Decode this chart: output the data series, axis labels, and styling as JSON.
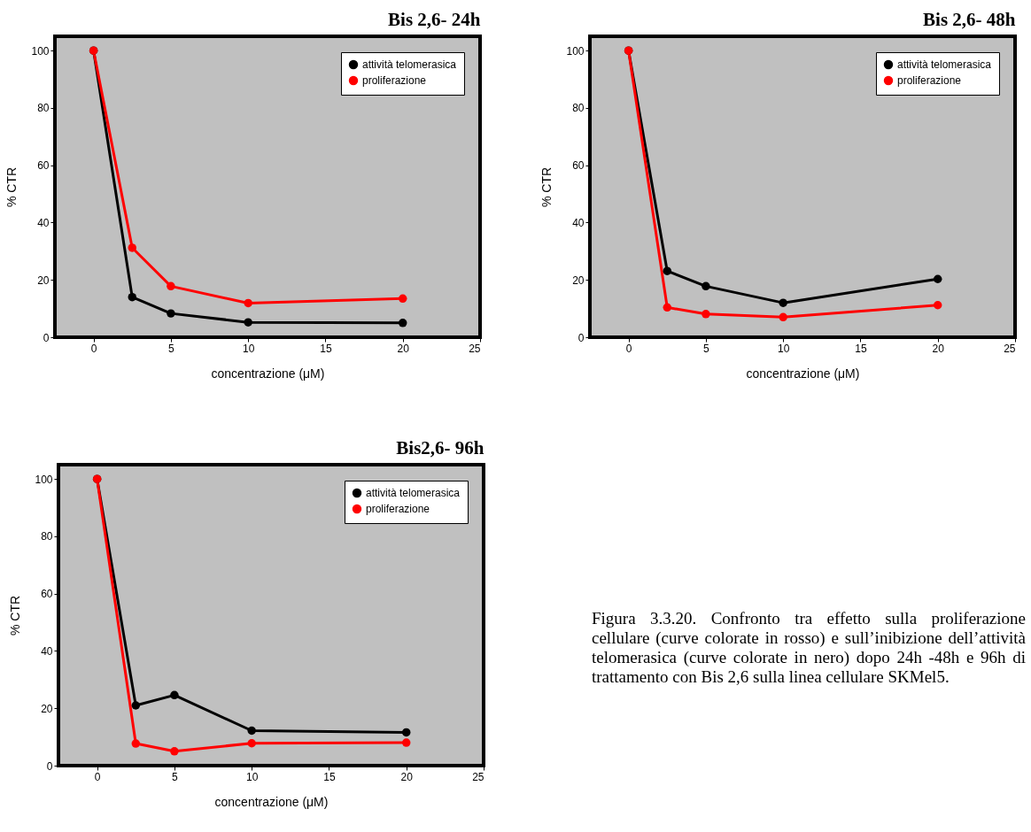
{
  "chart_data": [
    {
      "type": "line",
      "title": "Bis 2,6- 24h",
      "xlabel": "concentrazione (μM)",
      "ylabel": "% CTR",
      "x": [
        0,
        2.5,
        5,
        10,
        20
      ],
      "xlim": [
        -2.5,
        25
      ],
      "ylim": [
        0,
        105
      ],
      "xticks": [
        0,
        5,
        10,
        15,
        20,
        25
      ],
      "yticks": [
        0,
        20,
        40,
        60,
        80,
        100
      ],
      "grid": false,
      "legend": "top right",
      "marker": "circle",
      "line_style": "solid",
      "series": [
        {
          "name": "attività telomerasica",
          "color": "#000000",
          "values": [
            100,
            14,
            8.3,
            5.2,
            5.0
          ]
        },
        {
          "name": "proliferazione",
          "color": "#ff0000",
          "values": [
            100,
            31.2,
            17.8,
            11.9,
            13.5
          ]
        }
      ]
    },
    {
      "type": "line",
      "title": "Bis 2,6- 48h",
      "xlabel": "concentrazione (μM)",
      "ylabel": "% CTR",
      "x": [
        0,
        2.5,
        5,
        10,
        20
      ],
      "xlim": [
        -2.5,
        25
      ],
      "ylim": [
        0,
        105
      ],
      "xticks": [
        0,
        5,
        10,
        15,
        20,
        25
      ],
      "yticks": [
        0,
        20,
        40,
        60,
        80,
        100
      ],
      "grid": false,
      "legend": "top right",
      "marker": "circle",
      "line_style": "solid",
      "series": [
        {
          "name": "attività telomerasica",
          "color": "#000000",
          "values": [
            100,
            23.1,
            17.8,
            12.0,
            20.3
          ]
        },
        {
          "name": "proliferazione",
          "color": "#ff0000",
          "values": [
            100,
            10.4,
            8.1,
            7.0,
            11.2
          ]
        }
      ]
    },
    {
      "type": "line",
      "title": "Bis2,6- 96h",
      "xlabel": "concentrazione (μM)",
      "ylabel": "% CTR",
      "x": [
        0,
        2.5,
        5,
        10,
        20
      ],
      "xlim": [
        -2.5,
        25
      ],
      "ylim": [
        0,
        105
      ],
      "xticks": [
        0,
        5,
        10,
        15,
        20,
        25
      ],
      "yticks": [
        0,
        20,
        40,
        60,
        80,
        100
      ],
      "grid": false,
      "legend": "top right",
      "marker": "circle",
      "line_style": "solid",
      "annotations": [
        "Figura 3.3.20. Confronto tra effetto sulla proliferazione cellulare (curve colorate in rosso) e sull’inibizione dell’attività telomerasica (curve colorate in nero) dopo 24h -48h e 96h di trattamento con Bis 2,6 sulla linea cellulare SKMel5."
      ],
      "series": [
        {
          "name": "attività telomerasica",
          "color": "#000000",
          "values": [
            100,
            21,
            24.6,
            12.2,
            11.6
          ]
        },
        {
          "name": "proliferazione",
          "color": "#ff0000",
          "values": [
            100,
            7.7,
            5.0,
            7.8,
            8.0
          ]
        }
      ]
    }
  ]
}
